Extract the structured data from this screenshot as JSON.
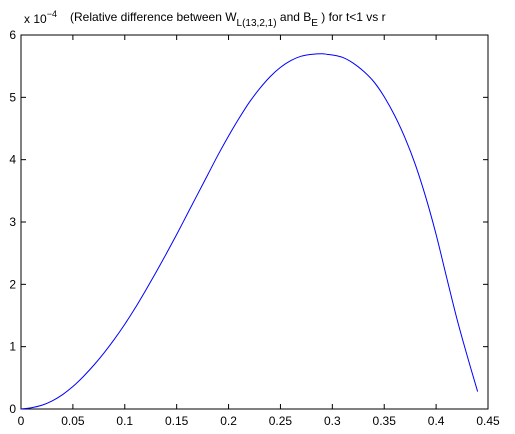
{
  "chart_data": {
    "type": "line",
    "title": {
      "before_w": "(Relative difference between W",
      "w_sub": "L(13,2,1)",
      "between": " and B",
      "b_sub": "E",
      "after": " ) for t<1  vs r"
    },
    "y_scale": {
      "base": "x 10",
      "exponent": "−4"
    },
    "xlabel": "",
    "ylabel": "",
    "xlim": [
      0,
      0.45
    ],
    "ylim": [
      0,
      6
    ],
    "x_ticks": [
      "0",
      "0.05",
      "0.1",
      "0.15",
      "0.2",
      "0.25",
      "0.3",
      "0.35",
      "0.4",
      "0.45"
    ],
    "y_ticks": [
      "0",
      "1",
      "2",
      "3",
      "4",
      "5",
      "6"
    ],
    "grid": false,
    "series": [
      {
        "color": "#0000ff",
        "x": [
          0,
          0.01,
          0.02,
          0.03,
          0.04,
          0.05,
          0.06,
          0.07,
          0.08,
          0.09,
          0.1,
          0.11,
          0.12,
          0.13,
          0.14,
          0.15,
          0.16,
          0.17,
          0.18,
          0.19,
          0.2,
          0.21,
          0.22,
          0.23,
          0.24,
          0.25,
          0.26,
          0.27,
          0.28,
          0.29,
          0.295,
          0.3,
          0.31,
          0.32,
          0.33,
          0.34,
          0.35,
          0.36,
          0.37,
          0.38,
          0.39,
          0.4,
          0.41,
          0.42,
          0.43,
          0.44
        ],
        "y": [
          0,
          0.02,
          0.06,
          0.13,
          0.23,
          0.36,
          0.52,
          0.7,
          0.9,
          1.12,
          1.36,
          1.62,
          1.9,
          2.19,
          2.49,
          2.8,
          3.12,
          3.44,
          3.76,
          4.08,
          4.38,
          4.66,
          4.92,
          5.14,
          5.33,
          5.48,
          5.59,
          5.66,
          5.69,
          5.7,
          5.69,
          5.68,
          5.64,
          5.55,
          5.42,
          5.25,
          5.01,
          4.71,
          4.35,
          3.92,
          3.4,
          2.8,
          2.12,
          1.45,
          0.85,
          0.28
        ]
      }
    ]
  }
}
